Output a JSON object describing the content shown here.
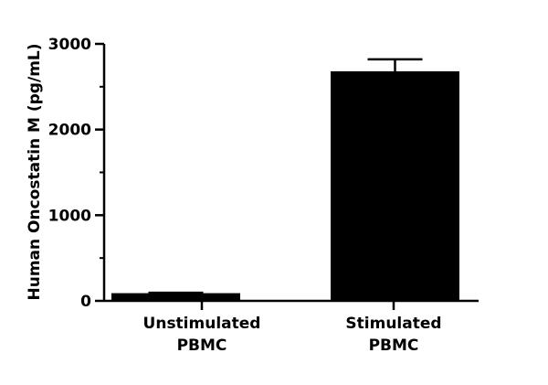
{
  "chart_data": {
    "type": "bar",
    "ylabel": "Human Oncostatin M (pg/mL)",
    "ylim": [
      0,
      3000
    ],
    "yticks": [
      0,
      1000,
      2000,
      3000
    ],
    "yticks_minor": [
      500,
      1500,
      2500
    ],
    "categories": [
      [
        "Unstimulated",
        "PBMC"
      ],
      [
        "Stimulated",
        "PBMC"
      ]
    ],
    "values": [
      90,
      2680
    ],
    "errors": [
      5,
      140
    ],
    "grid": false,
    "bar_color": "#000000"
  }
}
